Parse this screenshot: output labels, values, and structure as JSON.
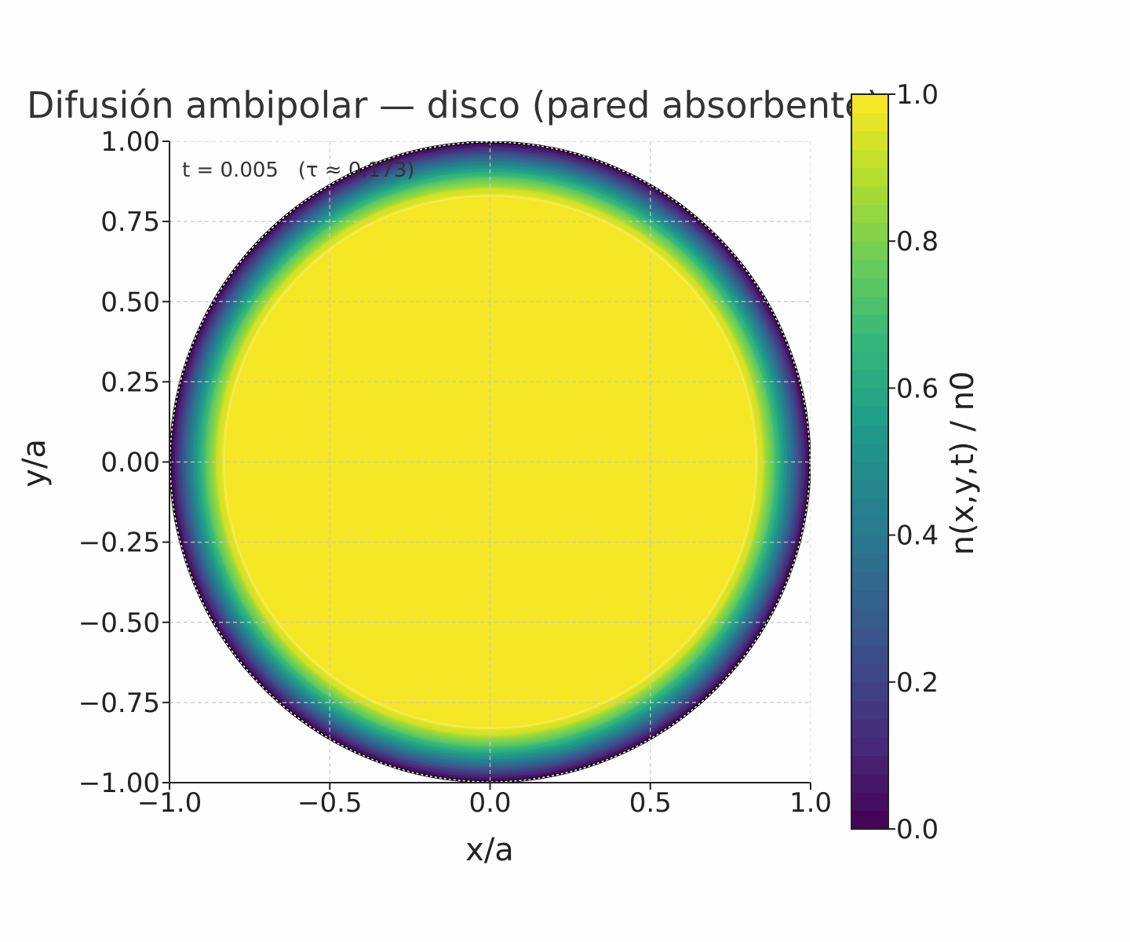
{
  "chart_data": {
    "type": "heatmap",
    "title": "Difusión ambipolar — disco (pared absorbente)",
    "xlabel": "x/a",
    "ylabel": "y/a",
    "annotation": "t = 0.005   (τ ≈ 0.173)",
    "xlim": [
      -1.0,
      1.0
    ],
    "ylim": [
      -1.0,
      1.0
    ],
    "x_ticks": [
      "−1.0",
      "−0.5",
      "0.0",
      "0.5",
      "1.0"
    ],
    "x_tick_values": [
      -1.0,
      -0.5,
      0.0,
      0.5,
      1.0
    ],
    "y_ticks": [
      "1.00",
      "0.75",
      "0.50",
      "0.25",
      "0.00",
      "−0.25",
      "−0.50",
      "−0.75",
      "−1.00"
    ],
    "y_tick_values": [
      1.0,
      0.75,
      0.5,
      0.25,
      0.0,
      -0.25,
      -0.5,
      -0.75,
      -1.0
    ],
    "grid": true,
    "colormap": "viridis",
    "colorbar": {
      "label": "n(x,y,t) / n0",
      "range": [
        0.0,
        1.0
      ],
      "ticks": [
        "0.0",
        "0.2",
        "0.4",
        "0.6",
        "0.8",
        "1.0"
      ],
      "tick_values": [
        0.0,
        0.2,
        0.4,
        0.6,
        0.8,
        1.0
      ],
      "levels": 40
    },
    "radial_profile": [
      {
        "r": 0.0,
        "n": 1.0
      },
      {
        "r": 0.16,
        "n": 1.0
      },
      {
        "r": 0.3,
        "n": 0.975
      },
      {
        "r": 0.42,
        "n": 1.0
      },
      {
        "r": 0.65,
        "n": 0.975
      },
      {
        "r": 0.78,
        "n": 1.0
      },
      {
        "r": 0.83,
        "n": 0.975
      },
      {
        "r": 0.85,
        "n": 0.93
      },
      {
        "r": 0.88,
        "n": 0.78
      },
      {
        "r": 0.91,
        "n": 0.6
      },
      {
        "r": 0.94,
        "n": 0.4
      },
      {
        "r": 0.97,
        "n": 0.2
      },
      {
        "r": 1.0,
        "n": 0.0
      }
    ],
    "contour_line_radius": 0.83,
    "contour_line_color": "#f5ec4a"
  },
  "colors": {
    "axis": "#222222",
    "grid": "#c8c8c8",
    "viridis_stops": [
      "#440154",
      "#482878",
      "#3e4a89",
      "#31688e",
      "#26828e",
      "#1f9e89",
      "#35b779",
      "#6ece58",
      "#b5de2b",
      "#fde725"
    ]
  }
}
